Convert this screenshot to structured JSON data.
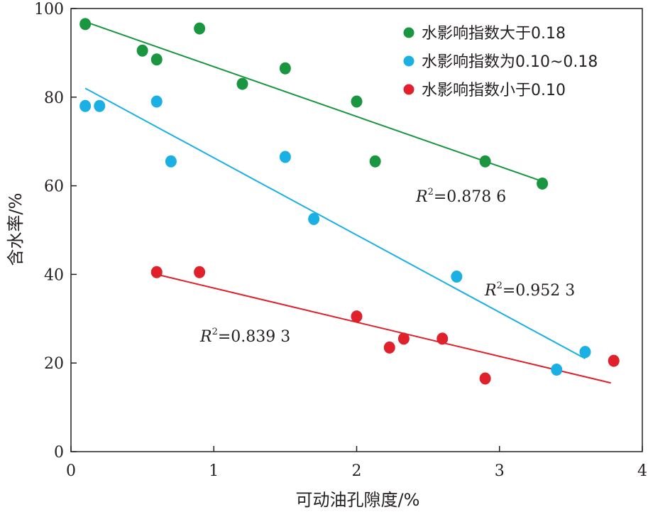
{
  "chart_data": {
    "type": "scatter",
    "xlabel": "可动油孔隙度/%",
    "ylabel": "含水率/%",
    "xlim": [
      0,
      4
    ],
    "ylim": [
      0,
      100
    ],
    "x_ticks": [
      "0",
      "1",
      "2",
      "3",
      "4"
    ],
    "y_ticks": [
      "0",
      "20",
      "40",
      "60",
      "80",
      "100"
    ],
    "grid": false,
    "legend_position": "top-right",
    "series": [
      {
        "name": "水影响指数大于0.18",
        "color": "#1a9641",
        "x": [
          0.1,
          0.5,
          0.6,
          0.9,
          1.2,
          1.5,
          2.0,
          2.13,
          2.9,
          3.3
        ],
        "y": [
          96.5,
          90.5,
          88.5,
          95.5,
          83.0,
          86.5,
          79.0,
          65.5,
          65.5,
          60.5
        ],
        "trend": {
          "x1": 0.1,
          "y1": 97,
          "x2": 3.3,
          "y2": 61
        },
        "r2_prefix": "R",
        "r2_sup": "2",
        "r2_value": "=0.878 6"
      },
      {
        "name": "水影响指数为0.10~0.18",
        "color": "#1ab0e4",
        "x": [
          0.1,
          0.2,
          0.6,
          0.7,
          1.5,
          1.7,
          2.7,
          3.4,
          3.6
        ],
        "y": [
          78.0,
          78.0,
          79.0,
          65.5,
          66.5,
          52.5,
          39.5,
          18.5,
          22.5
        ],
        "trend": {
          "x1": 0.1,
          "y1": 82,
          "x2": 3.6,
          "y2": 21
        },
        "r2_prefix": "R",
        "r2_sup": "2",
        "r2_value": "=0.952 3"
      },
      {
        "name": "水影响指数小于0.10",
        "color": "#e0202a",
        "x": [
          0.6,
          0.9,
          2.0,
          2.23,
          2.33,
          2.6,
          2.9,
          3.8
        ],
        "y": [
          40.5,
          40.5,
          30.5,
          23.5,
          25.5,
          25.5,
          16.5,
          20.5
        ],
        "trend": {
          "x1": 0.6,
          "y1": 40,
          "x2": 3.78,
          "y2": 15.5
        },
        "r2_prefix": "R",
        "r2_sup": "2",
        "r2_value": "=0.839 3"
      }
    ]
  }
}
